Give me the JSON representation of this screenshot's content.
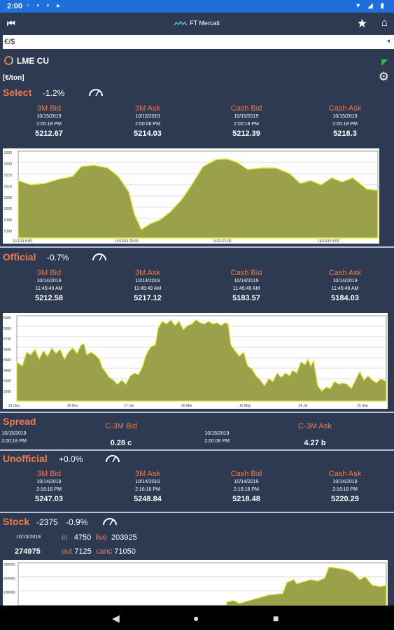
{
  "status": {
    "time": "2:00"
  },
  "app": {
    "title": "FT Mercati"
  },
  "currency": {
    "value": "€/$"
  },
  "instrument": {
    "name": "LME CU",
    "unit": "[€/ton]"
  },
  "select": {
    "title": "Select",
    "change": "-1.2%",
    "quotes": [
      {
        "label": "3M Bid",
        "date": "10/15/2019",
        "time": "2:00:18 PM",
        "value": "5212.67"
      },
      {
        "label": "3M Ask",
        "date": "10/15/2019",
        "time": "2:00:08 PM",
        "value": "5214.03"
      },
      {
        "label": "Cash Bid",
        "date": "10/15/2019",
        "time": "2:00:18 PM",
        "value": "5212.39"
      },
      {
        "label": "Cash Ask",
        "date": "10/15/2019",
        "time": "2:00:18 PM",
        "value": "5218.3"
      }
    ]
  },
  "official": {
    "title": "Official",
    "change": "-0.7%",
    "quotes": [
      {
        "label": "3M Bid",
        "date": "10/14/2019",
        "time": "11:45:49 AM",
        "value": "5212.58"
      },
      {
        "label": "3M Ask",
        "date": "10/14/2019",
        "time": "11:45:49 AM",
        "value": "5217.12"
      },
      {
        "label": "Cash Bid",
        "date": "10/14/2019",
        "time": "11:45:49 AM",
        "value": "5183.57"
      },
      {
        "label": "Cash Ask",
        "date": "10/14/2019",
        "time": "11:45:49 AM",
        "value": "5184.03"
      }
    ]
  },
  "spread": {
    "title": "Spread",
    "date": "10/15/2019",
    "time": "2:00:18 PM",
    "c3m_bid": {
      "label": "C-3M Bid",
      "value": "0.28 c"
    },
    "c3m_ask": {
      "label": "C-3M Ask",
      "date": "10/15/2019",
      "time": "2:00:08 PM",
      "value": "4.27 b"
    }
  },
  "unofficial": {
    "title": "Unofficial",
    "change": "+0.0%",
    "quotes": [
      {
        "label": "3M Bid",
        "date": "10/14/2019",
        "time": "2:16:18 PM",
        "value": "5247.03"
      },
      {
        "label": "3M Ask",
        "date": "10/14/2019",
        "time": "2:16:18 PM",
        "value": "5248.84"
      },
      {
        "label": "Cash Bid",
        "date": "10/14/2019",
        "time": "2:16:18 PM",
        "value": "5218.48"
      },
      {
        "label": "Cash Ask",
        "date": "10/14/2019",
        "time": "2:16:18 PM",
        "value": "5220.29"
      }
    ]
  },
  "stock": {
    "title": "Stock",
    "delta": "-2375",
    "change": "-0.9%",
    "date": "10/15/2019",
    "total": "274975",
    "in_label": "in",
    "in_value": "4750",
    "live_label": "live",
    "live_value": "203925",
    "out_label": "out",
    "out_value": "7125",
    "canc_label": "canc",
    "canc_value": "71050"
  },
  "colors": {
    "accent": "#f07a4a",
    "background": "#2d3a52",
    "fill": "#9ba04a",
    "line": "#e0e83a",
    "status": "#1e6fd9"
  },
  "icons": [
    "back-icon",
    "ft-logo-icon",
    "star-icon",
    "home-icon",
    "dropdown-icon",
    "spinner-icon",
    "rss-icon",
    "gear-icon",
    "gauge-icon"
  ]
}
